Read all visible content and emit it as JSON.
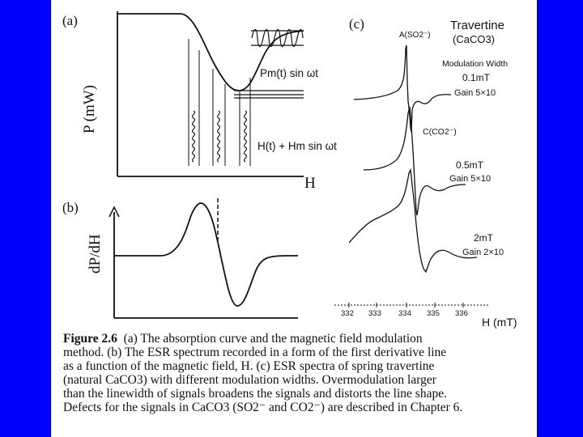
{
  "panel_a": {
    "label": "(a)",
    "y_axis": "P (mW)",
    "x_axis": "H",
    "modulated_power": "Pm(t) sin ωt",
    "modulated_field": "H(t) + Hm sin ωt"
  },
  "panel_b": {
    "label": "(b)",
    "y_axis": "dP/dH"
  },
  "panel_c": {
    "label": "(c)",
    "title": "Travertine",
    "subtitle": "(CaCO3)",
    "peak_a": "A(SO2⁻)",
    "peak_c": "C(CO2⁻)",
    "modulation_header": "Modulation Width",
    "spectra": [
      {
        "width": "0.1mT",
        "gain": "Gain 5×10"
      },
      {
        "width": "0.5mT",
        "gain": "Gain 5×10"
      },
      {
        "width": "2mT",
        "gain": "Gain 2×10"
      }
    ],
    "x_ticks": [
      "332",
      "333",
      "334",
      "335",
      "336"
    ],
    "x_unit": "H (mT)"
  },
  "caption": {
    "figure_label": "Figure 2.6",
    "lines": [
      "(a) The absorption curve and the magnetic field modulation",
      "method. (b) The ESR spectrum recorded in a form of the first derivative line",
      "as a function of the magnetic field, H. (c) ESR spectra of spring travertine",
      "(natural CaCO3) with different modulation widths. Overmodulation larger",
      "than the linewidth of signals broadens the signals and distorts the line shape.",
      "Defects for the signals in CaCO3 (SO2⁻ and CO2⁻) are described in Chapter 6."
    ]
  }
}
